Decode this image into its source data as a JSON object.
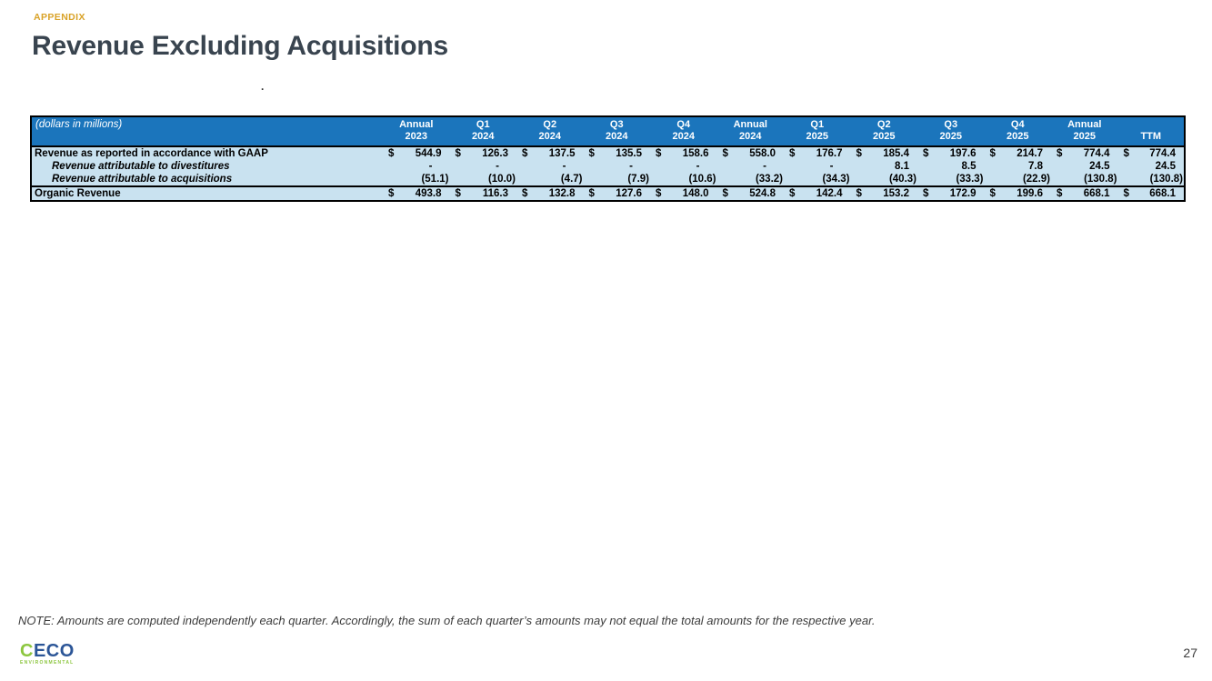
{
  "page": {
    "eyebrow": "APPENDIX",
    "title": "Revenue Excluding Acquisitions",
    "stray_dot": ".",
    "note": "NOTE: Amounts are computed independently each quarter. Accordingly, the sum of each quarter’s amounts may not equal the total amounts for the respective year.",
    "page_number": "27"
  },
  "logo": {
    "text_green": "C",
    "text_blue": "ECO",
    "subtext": "ENVIRONMENTAL"
  },
  "colors": {
    "header_blue": "#1B75BC",
    "row_light_blue": "#C9E2F0",
    "accent_gold": "#D9A227",
    "title_dark": "#39444F",
    "logo_green": "#8CC63F",
    "logo_blue": "#2B5597"
  },
  "table": {
    "unit_label": "(dollars in millions)",
    "columns": [
      {
        "period": "Annual",
        "year": "2023"
      },
      {
        "period": "Q1",
        "year": "2024"
      },
      {
        "period": "Q2",
        "year": "2024"
      },
      {
        "period": "Q3",
        "year": "2024"
      },
      {
        "period": "Q4",
        "year": "2024"
      },
      {
        "period": "Annual",
        "year": "2024"
      },
      {
        "period": "Q1",
        "year": "2025"
      },
      {
        "period": "Q2",
        "year": "2025"
      },
      {
        "period": "Q3",
        "year": "2025"
      },
      {
        "period": "Q4",
        "year": "2025"
      },
      {
        "period": "Annual",
        "year": "2025"
      },
      {
        "period": "",
        "year": "TTM"
      }
    ],
    "rows": [
      {
        "label": "Revenue as reported in accordance with GAAP",
        "style": "primary",
        "dollar": true,
        "values": [
          "544.9",
          "126.3",
          "137.5",
          "135.5",
          "158.6",
          "558.0",
          "176.7",
          "185.4",
          "197.6",
          "214.7",
          "774.4",
          "774.4"
        ]
      },
      {
        "label": "Revenue attributable to divestitures",
        "style": "indent",
        "dollar": false,
        "values": [
          "-",
          "-",
          "-",
          "-",
          "-",
          "-",
          "-",
          "8.1",
          "8.5",
          "7.8",
          "24.5",
          "24.5"
        ]
      },
      {
        "label": "Revenue attributable to acquisitions",
        "style": "indent",
        "dollar": false,
        "values": [
          "(51.1)",
          "(10.0)",
          "(4.7)",
          "(7.9)",
          "(10.6)",
          "(33.2)",
          "(34.3)",
          "(40.3)",
          "(33.3)",
          "(22.9)",
          "(130.8)",
          "(130.8)"
        ]
      },
      {
        "label": "Organic Revenue",
        "style": "total",
        "dollar": true,
        "values": [
          "493.8",
          "116.3",
          "132.8",
          "127.6",
          "148.0",
          "524.8",
          "142.4",
          "153.2",
          "172.9",
          "199.6",
          "668.1",
          "668.1"
        ]
      }
    ]
  }
}
